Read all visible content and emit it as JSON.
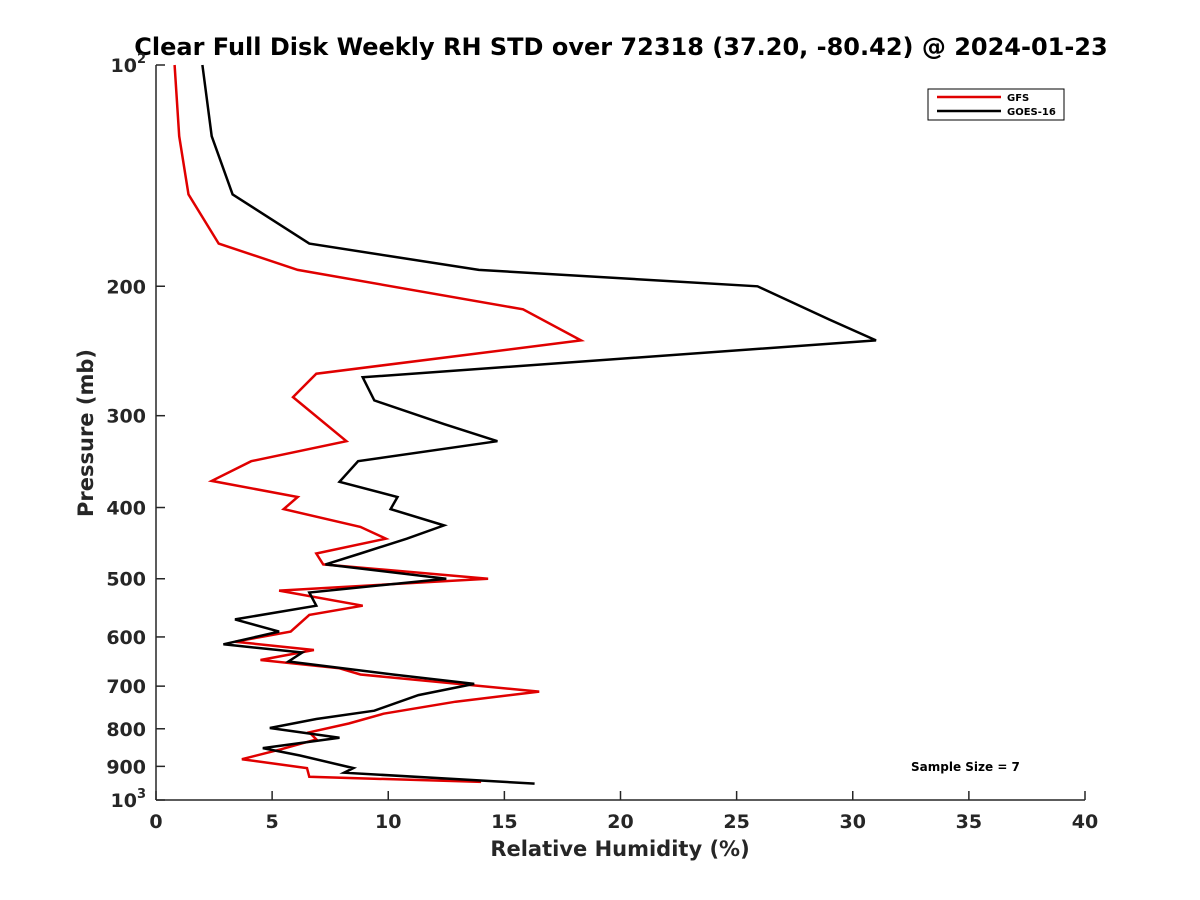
{
  "chart_data": {
    "type": "line",
    "title": "Clear Full Disk Weekly RH STD over 72318 (37.20, -80.42) @ 2024-01-23",
    "xlabel": "Relative Humidity (%)",
    "ylabel": "Pressure (mb)",
    "xlim": [
      0,
      40
    ],
    "ylim": [
      100,
      1000
    ],
    "y_scale": "log",
    "y_reversed": true,
    "x_ticks": [
      0,
      5,
      10,
      15,
      20,
      25,
      30,
      35,
      40
    ],
    "y_ticks": [
      {
        "value": 100,
        "label": "10",
        "sup": "2"
      },
      {
        "value": 200,
        "label": "200",
        "sup": ""
      },
      {
        "value": 300,
        "label": "300",
        "sup": ""
      },
      {
        "value": 400,
        "label": "400",
        "sup": ""
      },
      {
        "value": 500,
        "label": "500",
        "sup": ""
      },
      {
        "value": 600,
        "label": "600",
        "sup": ""
      },
      {
        "value": 700,
        "label": "700",
        "sup": ""
      },
      {
        "value": 800,
        "label": "800",
        "sup": ""
      },
      {
        "value": 900,
        "label": "900",
        "sup": ""
      },
      {
        "value": 1000,
        "label": "10",
        "sup": "3"
      }
    ],
    "legend_position": "top-right",
    "annotation": "Sample Size = 7",
    "series": [
      {
        "name": "GFS",
        "color": "#e00000",
        "points": [
          [
            0.8,
            100
          ],
          [
            1.0,
            125
          ],
          [
            1.4,
            150
          ],
          [
            2.7,
            175
          ],
          [
            6.1,
            190
          ],
          [
            15.8,
            215
          ],
          [
            18.3,
            237
          ],
          [
            6.9,
            263
          ],
          [
            5.9,
            283
          ],
          [
            8.2,
            325
          ],
          [
            4.1,
            346
          ],
          [
            2.4,
            368
          ],
          [
            6.1,
            387
          ],
          [
            5.5,
            402
          ],
          [
            8.8,
            425
          ],
          [
            9.9,
            441
          ],
          [
            6.9,
            462
          ],
          [
            7.2,
            478
          ],
          [
            14.3,
            500
          ],
          [
            5.3,
            519
          ],
          [
            8.9,
            544
          ],
          [
            6.6,
            560
          ],
          [
            5.8,
            590
          ],
          [
            3.4,
            609
          ],
          [
            6.8,
            625
          ],
          [
            4.5,
            645
          ],
          [
            7.9,
            662
          ],
          [
            8.8,
            675
          ],
          [
            16.5,
            712
          ],
          [
            12.9,
            735
          ],
          [
            9.8,
            763
          ],
          [
            8.3,
            787
          ],
          [
            6.6,
            809
          ],
          [
            6.9,
            827
          ],
          [
            5.4,
            853
          ],
          [
            3.7,
            880
          ],
          [
            6.5,
            905
          ],
          [
            6.6,
            930
          ],
          [
            14.0,
            945
          ]
        ]
      },
      {
        "name": "GOES-16",
        "color": "#000000",
        "points": [
          [
            2.0,
            100
          ],
          [
            2.4,
            125
          ],
          [
            3.3,
            150
          ],
          [
            6.6,
            175
          ],
          [
            13.9,
            190
          ],
          [
            25.9,
            200
          ],
          [
            29.0,
            222
          ],
          [
            31.0,
            237
          ],
          [
            8.9,
            266
          ],
          [
            9.4,
            286
          ],
          [
            12.4,
            308
          ],
          [
            14.7,
            325
          ],
          [
            8.7,
            346
          ],
          [
            7.9,
            369
          ],
          [
            10.4,
            387
          ],
          [
            10.1,
            402
          ],
          [
            12.4,
            423
          ],
          [
            10.8,
            441
          ],
          [
            8.8,
            462
          ],
          [
            7.3,
            478
          ],
          [
            12.5,
            500
          ],
          [
            6.6,
            522
          ],
          [
            6.9,
            544
          ],
          [
            3.4,
            568
          ],
          [
            5.3,
            590
          ],
          [
            2.9,
            614
          ],
          [
            6.3,
            630
          ],
          [
            5.7,
            648
          ],
          [
            10.2,
            675
          ],
          [
            13.7,
            695
          ],
          [
            11.3,
            720
          ],
          [
            9.4,
            756
          ],
          [
            6.9,
            776
          ],
          [
            4.9,
            798
          ],
          [
            7.9,
            823
          ],
          [
            4.6,
            850
          ],
          [
            6.2,
            870
          ],
          [
            8.5,
            905
          ],
          [
            8.1,
            918
          ],
          [
            16.3,
            950
          ]
        ]
      }
    ]
  }
}
